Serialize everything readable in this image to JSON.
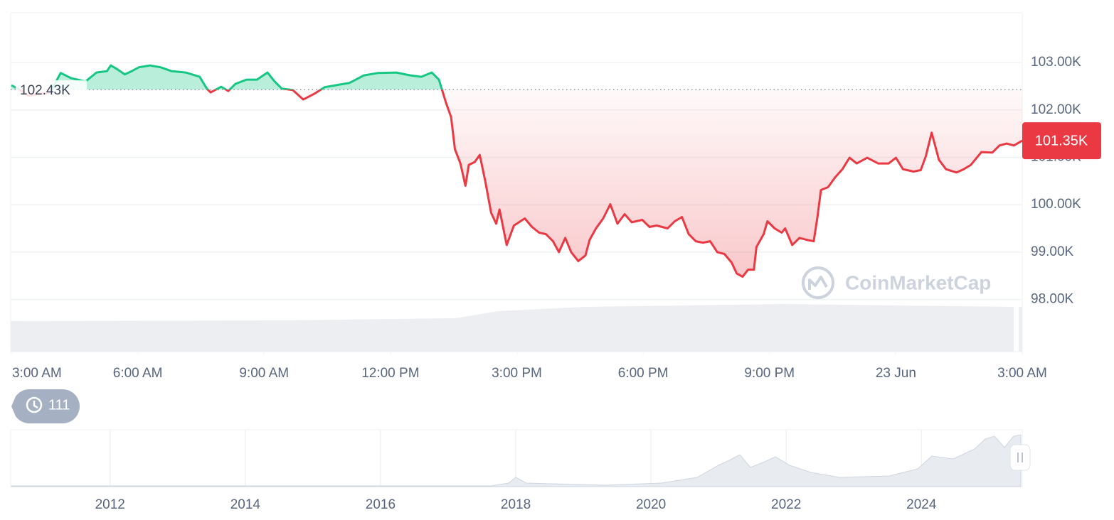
{
  "chart_data": {
    "type": "line",
    "x": [
      0,
      0.15,
      0.41,
      0.92,
      1.17,
      1.42,
      1.76,
      2.02,
      2.27,
      2.36,
      2.53,
      2.69,
      2.86,
      3.03,
      3.29,
      3.54,
      3.8,
      4.14,
      4.47,
      4.64,
      4.73,
      4.98,
      5.15,
      5.32,
      5.58,
      5.83,
      6.08,
      6.25,
      6.42,
      6.68,
      6.93,
      7.19,
      7.44,
      7.69,
      8.03,
      8.37,
      8.71,
      9.14,
      9.47,
      9.73,
      9.98,
      10.15,
      10.32,
      10.44,
      10.53,
      10.66,
      10.78,
      10.86,
      11,
      11.12,
      11.25,
      11.39,
      11.51,
      11.59,
      11.76,
      11.93,
      12.19,
      12.36,
      12.53,
      12.69,
      12.86,
      13,
      13.15,
      13.29,
      13.46,
      13.63,
      13.73,
      13.88,
      14.05,
      14.22,
      14.39,
      14.56,
      14.73,
      14.98,
      15.15,
      15.32,
      15.58,
      15.75,
      15.92,
      16.08,
      16.25,
      16.42,
      16.59,
      16.76,
      16.93,
      17.1,
      17.22,
      17.36,
      17.49,
      17.63,
      17.69,
      17.86,
      17.95,
      18.12,
      18.29,
      18.37,
      18.54,
      18.71,
      18.88,
      19.05,
      19.14,
      19.22,
      19.39,
      19.56,
      19.73,
      19.9,
      20.07,
      20.32,
      20.58,
      20.83,
      21,
      21.17,
      21.42,
      21.59,
      21.71,
      21.85,
      22.02,
      22.19,
      22.44,
      22.61,
      22.78,
      23.03,
      23.29,
      23.46,
      23.63,
      23.8,
      24
    ],
    "values": [
      102520,
      102450,
      102300,
      102370,
      102780,
      102670,
      102600,
      102790,
      102820,
      102940,
      102850,
      102750,
      102820,
      102900,
      102940,
      102900,
      102820,
      102790,
      102700,
      102450,
      102370,
      102490,
      102400,
      102550,
      102640,
      102640,
      102790,
      102600,
      102450,
      102420,
      102220,
      102340,
      102480,
      102520,
      102570,
      102730,
      102780,
      102790,
      102730,
      102700,
      102790,
      102640,
      102150,
      101850,
      101170,
      100870,
      100400,
      100840,
      100900,
      101050,
      100500,
      99830,
      99600,
      99900,
      99150,
      99560,
      99710,
      99530,
      99410,
      99380,
      99230,
      99000,
      99300,
      99000,
      98810,
      98930,
      99260,
      99500,
      99710,
      100010,
      99600,
      99800,
      99630,
      99680,
      99530,
      99560,
      99500,
      99650,
      99740,
      99380,
      99230,
      99200,
      99230,
      99000,
      98960,
      98780,
      98550,
      98480,
      98630,
      98630,
      99110,
      99380,
      99650,
      99500,
      99410,
      99500,
      99150,
      99300,
      99260,
      99230,
      99750,
      100310,
      100370,
      100580,
      100750,
      100990,
      100870,
      100990,
      100870,
      100870,
      100990,
      100750,
      100700,
      100730,
      101020,
      101520,
      100950,
      100750,
      100680,
      100750,
      100840,
      101110,
      101100,
      101250,
      101290,
      101250,
      101350
    ],
    "up_color": "#16c784",
    "down_color": "#ea3943",
    "reference_line": {
      "value": 102430,
      "label": "102.43K"
    },
    "current_price": {
      "value": 101350,
      "label": "101.35K"
    },
    "xlim": [
      0,
      24
    ],
    "xticks": [
      {
        "value": 0,
        "label": "3:00 AM"
      },
      {
        "value": 3,
        "label": "6:00 AM"
      },
      {
        "value": 6,
        "label": "9:00 AM"
      },
      {
        "value": 9,
        "label": "12:00 PM"
      },
      {
        "value": 12,
        "label": "3:00 PM"
      },
      {
        "value": 15,
        "label": "6:00 PM"
      },
      {
        "value": 18,
        "label": "9:00 PM"
      },
      {
        "value": 21,
        "label": "23 Jun"
      },
      {
        "value": 24,
        "label": "3:00 AM"
      }
    ],
    "ylim": [
      96900,
      104050
    ],
    "yticks": [
      {
        "value": 98000,
        "label": "98.00K"
      },
      {
        "value": 99000,
        "label": "99.00K"
      },
      {
        "value": 100000,
        "label": "100.00K"
      },
      {
        "value": 101000,
        "label": "101.00K"
      },
      {
        "value": 102000,
        "label": "102.00K"
      },
      {
        "value": 103000,
        "label": "103.00K"
      }
    ],
    "grid": true
  },
  "history_badge": "111",
  "watermark": "CoinMarketCap",
  "navigator": {
    "xlim": [
      2010.54,
      2025.47
    ],
    "xticks": [
      2012,
      2014,
      2016,
      2018,
      2020,
      2022,
      2024
    ]
  }
}
